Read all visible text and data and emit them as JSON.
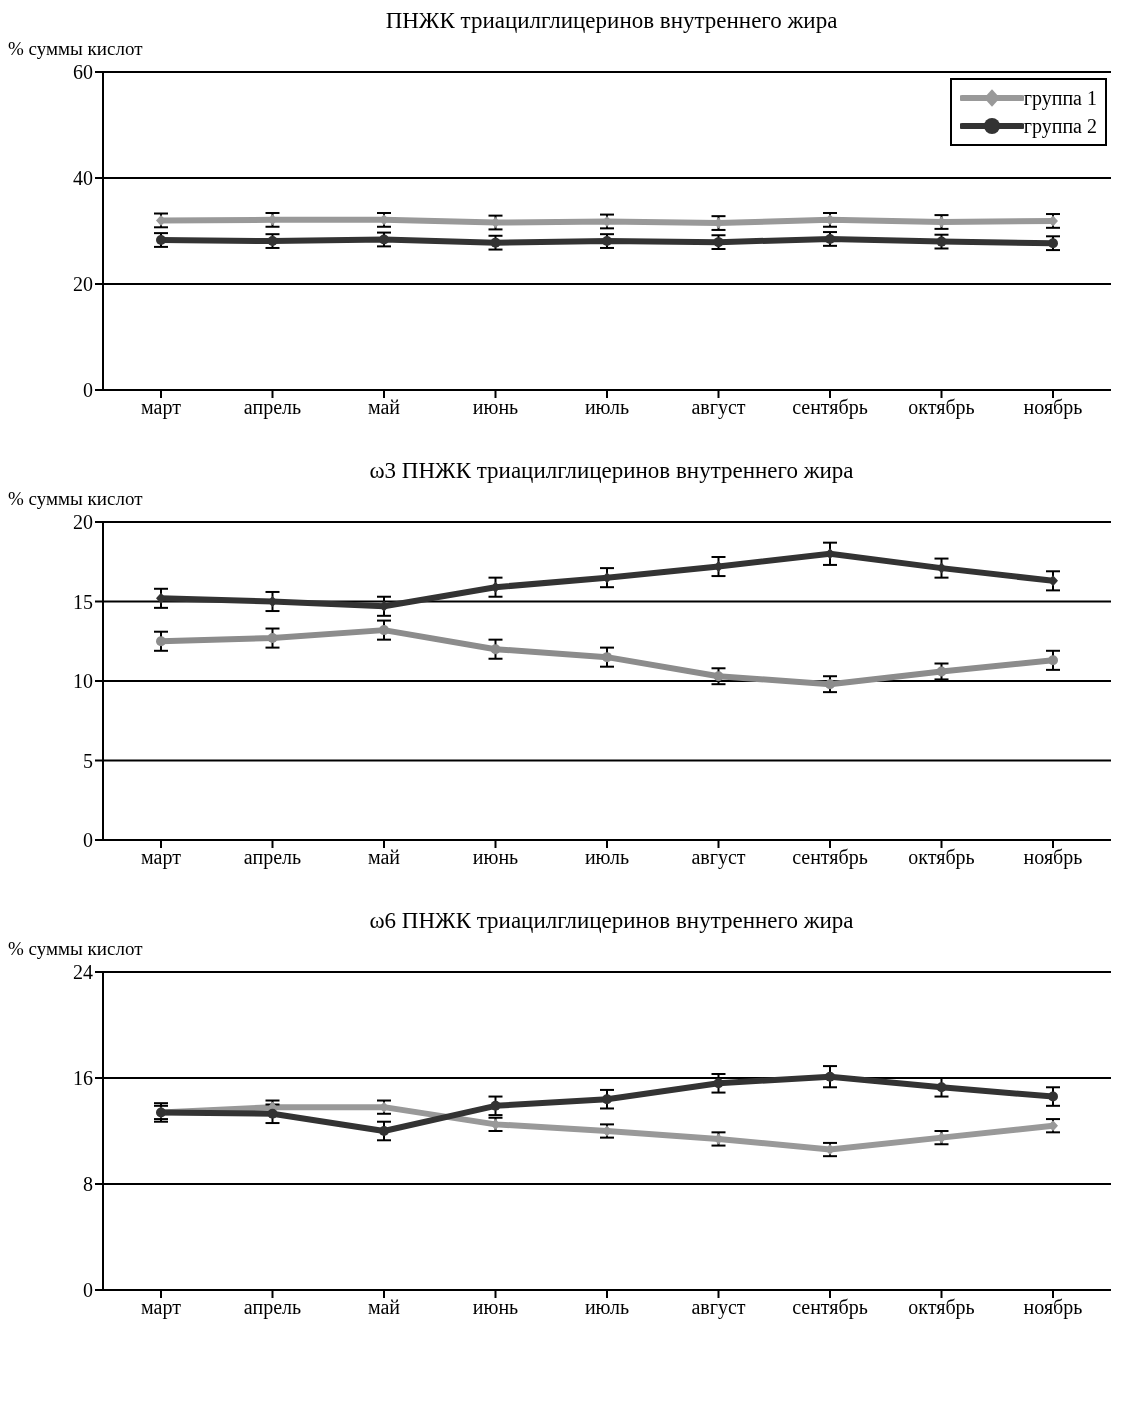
{
  "chart_data": [
    {
      "type": "line",
      "title": "ПНЖК триацилглицеринов внутреннего жира",
      "ylabel": "% суммы кислот",
      "categories": [
        "март",
        "апрель",
        "май",
        "июнь",
        "июль",
        "август",
        "сентябрь",
        "октябрь",
        "ноябрь"
      ],
      "ylim": [
        0,
        60
      ],
      "yticks": [
        0,
        20,
        40,
        60
      ],
      "grid": "y",
      "legend": "top right",
      "series": [
        {
          "name": "группа 1",
          "color": "#999999",
          "marker": "diamond",
          "values": [
            32,
            32.1,
            32.1,
            31.6,
            31.8,
            31.5,
            32.1,
            31.7,
            31.9
          ],
          "errors": [
            1.3,
            1.3,
            1.3,
            1.3,
            1.3,
            1.3,
            1.3,
            1.3,
            1.3
          ]
        },
        {
          "name": "группа 2",
          "color": "#333333",
          "marker": "circle",
          "values": [
            28.3,
            28.1,
            28.4,
            27.8,
            28.1,
            27.9,
            28.5,
            28.0,
            27.7
          ],
          "errors": [
            1.3,
            1.3,
            1.3,
            1.3,
            1.3,
            1.3,
            1.3,
            1.3,
            1.3
          ]
        }
      ]
    },
    {
      "type": "line",
      "title": "ω3 ПНЖК триацилглицеринов внутреннего жира",
      "ylabel": "% суммы кислот",
      "categories": [
        "март",
        "апрель",
        "май",
        "июнь",
        "июль",
        "август",
        "сентябрь",
        "октябрь",
        "ноябрь"
      ],
      "ylim": [
        0,
        20
      ],
      "yticks": [
        0,
        5,
        10,
        15,
        20
      ],
      "grid": "y",
      "series": [
        {
          "color": "#8c8c8c",
          "marker": "circle",
          "values": [
            12.5,
            12.7,
            13.2,
            12.0,
            11.5,
            10.3,
            9.8,
            10.6,
            11.3
          ],
          "errors": [
            0.6,
            0.6,
            0.6,
            0.6,
            0.6,
            0.5,
            0.5,
            0.5,
            0.6
          ]
        },
        {
          "color": "#333333",
          "marker": "diamond",
          "values": [
            15.2,
            15.0,
            14.7,
            15.9,
            16.5,
            17.2,
            18.0,
            17.1,
            16.3
          ],
          "errors": [
            0.6,
            0.6,
            0.6,
            0.6,
            0.6,
            0.6,
            0.7,
            0.6,
            0.6
          ]
        }
      ]
    },
    {
      "type": "line",
      "title": "ω6 ПНЖК триацилглицеринов внутреннего жира",
      "ylabel": "% суммы кислот",
      "categories": [
        "март",
        "апрель",
        "май",
        "июнь",
        "июль",
        "август",
        "сентябрь",
        "октябрь",
        "ноябрь"
      ],
      "ylim": [
        0,
        24
      ],
      "yticks": [
        0,
        8,
        16,
        24
      ],
      "grid": "y",
      "series": [
        {
          "color": "#999999",
          "marker": "diamond",
          "values": [
            13.4,
            13.8,
            13.8,
            12.5,
            12.0,
            11.4,
            10.6,
            11.5,
            12.4
          ],
          "errors": [
            0.5,
            0.5,
            0.5,
            0.5,
            0.5,
            0.5,
            0.5,
            0.5,
            0.5
          ]
        },
        {
          "color": "#333333",
          "marker": "circle",
          "values": [
            13.4,
            13.3,
            12.0,
            13.9,
            14.4,
            15.6,
            16.1,
            15.3,
            14.6
          ],
          "errors": [
            0.7,
            0.7,
            0.7,
            0.7,
            0.7,
            0.7,
            0.8,
            0.7,
            0.7
          ]
        }
      ]
    }
  ]
}
